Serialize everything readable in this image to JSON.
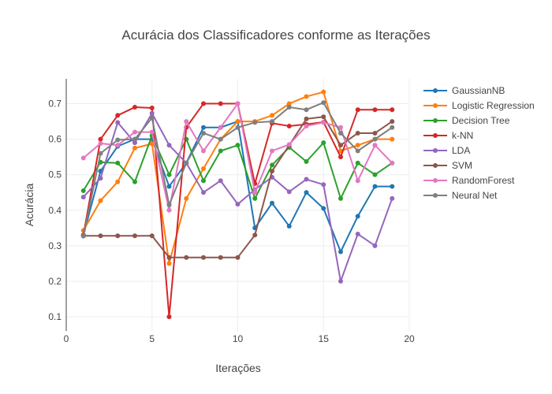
{
  "chart_data": {
    "type": "line",
    "title": "Acurácia dos Classificadores conforme as Iterações",
    "xlabel": "Iterações",
    "ylabel": "Acurácia",
    "xlim": [
      0,
      20
    ],
    "ylim": [
      0.06,
      0.77
    ],
    "xticks": [
      0,
      5,
      10,
      15,
      20
    ],
    "yticks": [
      0.1,
      0.2,
      0.3,
      0.4,
      0.5,
      0.6,
      0.7
    ],
    "grid": true,
    "legend_position": "right",
    "x": [
      1,
      2,
      3,
      4,
      5,
      6,
      7,
      8,
      9,
      10,
      11,
      12,
      13,
      14,
      15,
      16,
      17,
      18,
      19
    ],
    "series": [
      {
        "name": "GaussianNB",
        "color": "#1f77b4",
        "values": [
          0.33,
          0.51,
          0.58,
          0.6,
          0.6,
          0.467,
          0.533,
          0.633,
          0.633,
          0.65,
          0.35,
          0.42,
          0.355,
          0.45,
          0.405,
          0.283,
          0.383,
          0.467,
          0.467
        ]
      },
      {
        "name": "Logistic Regression",
        "color": "#ff7f0e",
        "values": [
          0.343,
          0.427,
          0.48,
          0.575,
          0.587,
          0.25,
          0.433,
          0.517,
          0.6,
          0.65,
          0.65,
          0.667,
          0.7,
          0.72,
          0.733,
          0.567,
          0.583,
          0.6,
          0.6
        ]
      },
      {
        "name": "Decision Tree",
        "color": "#2ca02c",
        "values": [
          0.455,
          0.535,
          0.533,
          0.48,
          0.61,
          0.5,
          0.6,
          0.483,
          0.567,
          0.583,
          0.433,
          0.527,
          0.577,
          0.537,
          0.59,
          0.433,
          0.533,
          0.5,
          0.533
        ]
      },
      {
        "name": "k-NN",
        "color": "#d62728",
        "values": [
          0.33,
          0.6,
          0.667,
          0.69,
          0.688,
          0.1,
          0.633,
          0.7,
          0.7,
          0.7,
          0.475,
          0.645,
          0.637,
          0.642,
          0.648,
          0.55,
          0.683,
          0.683,
          0.683
        ]
      },
      {
        "name": "LDA",
        "color": "#9467bd",
        "values": [
          0.437,
          0.49,
          0.647,
          0.59,
          0.673,
          0.583,
          0.533,
          0.45,
          0.483,
          0.417,
          0.458,
          0.493,
          0.452,
          0.487,
          0.472,
          0.2,
          0.333,
          0.3,
          0.433
        ]
      },
      {
        "name": "SVM",
        "color": "#8c564b",
        "values": [
          0.328,
          0.328,
          0.328,
          0.328,
          0.328,
          0.267,
          0.267,
          0.267,
          0.267,
          0.267,
          0.33,
          0.51,
          0.583,
          0.657,
          0.663,
          0.583,
          0.617,
          0.617,
          0.65
        ]
      },
      {
        "name": "RandomForest",
        "color": "#e377c2",
        "values": [
          0.547,
          0.588,
          0.583,
          0.62,
          0.62,
          0.4,
          0.65,
          0.567,
          0.633,
          0.7,
          0.45,
          0.567,
          0.585,
          0.637,
          0.647,
          0.633,
          0.483,
          0.583,
          0.533
        ]
      },
      {
        "name": "Neural Net",
        "color": "#7f7f7f",
        "values": [
          0.327,
          0.56,
          0.598,
          0.6,
          0.66,
          0.415,
          0.533,
          0.617,
          0.6,
          0.633,
          0.647,
          0.65,
          0.69,
          0.683,
          0.703,
          0.617,
          0.567,
          0.6,
          0.633
        ]
      }
    ]
  }
}
